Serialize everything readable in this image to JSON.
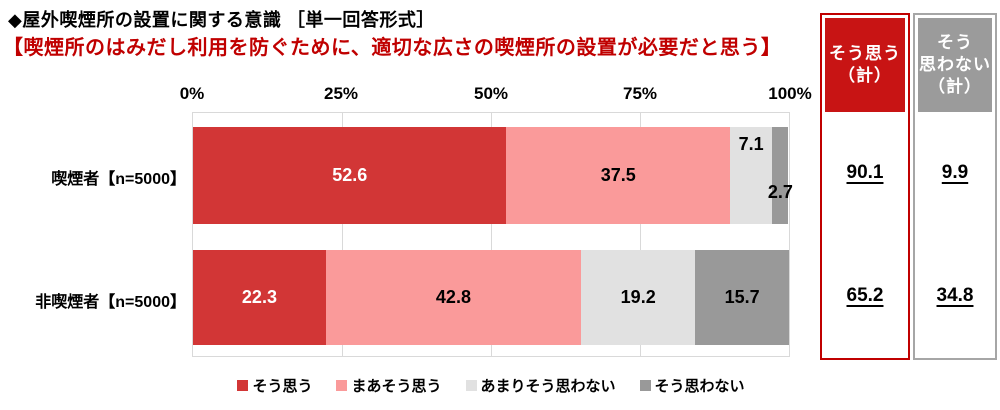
{
  "title": "◆屋外喫煙所の設置に関する意識 ［単一回答形式］",
  "subtitle": "【喫煙所のはみだし利用を防ぐために、適切な広さの喫煙所の設置が必要だと思う】",
  "styles": {
    "subtitle_color": "#C00000",
    "agree_header_fill": "#C81414",
    "disagree_header_fill": "#9B9B9B",
    "agree_border": "#C00000",
    "disagree_border": "#A6A6A6"
  },
  "summary": {
    "agree_header_lines": [
      "そう思う",
      "（計）"
    ],
    "disagree_header_lines": [
      "そう",
      "思わない",
      "（計）"
    ]
  },
  "chart_data": {
    "type": "bar",
    "stacked": true,
    "orientation": "horizontal",
    "title": "◆屋外喫煙所の設置に関する意識 ［単一回答形式］",
    "subtitle": "【喫煙所のはみだし利用を防ぐために、適切な広さの喫煙所の設置が必要だと思う】",
    "categories": [
      "喫煙者【n=5000】",
      "非喫煙者【n=5000】"
    ],
    "series": [
      {
        "name": "そう思う",
        "color": "#D23636",
        "values": [
          52.6,
          22.3
        ]
      },
      {
        "name": "まあそう思う",
        "color": "#FA9A9A",
        "values": [
          37.5,
          42.8
        ]
      },
      {
        "name": "あまりそう思わない",
        "color": "#E1E1E1",
        "values": [
          7.1,
          19.2
        ]
      },
      {
        "name": "そう思わない",
        "color": "#999999",
        "values": [
          2.7,
          15.7
        ]
      }
    ],
    "totals": {
      "agree_label": "そう思う（計）",
      "disagree_label": "そう思わない（計）",
      "agree": [
        "90.1",
        "65.2"
      ],
      "disagree": [
        "9.9",
        "34.8"
      ]
    },
    "xlim": [
      0,
      100
    ],
    "x_ticks": [
      "0%",
      "25%",
      "50%",
      "75%",
      "100%"
    ],
    "legend_position": "bottom",
    "grid": true
  }
}
